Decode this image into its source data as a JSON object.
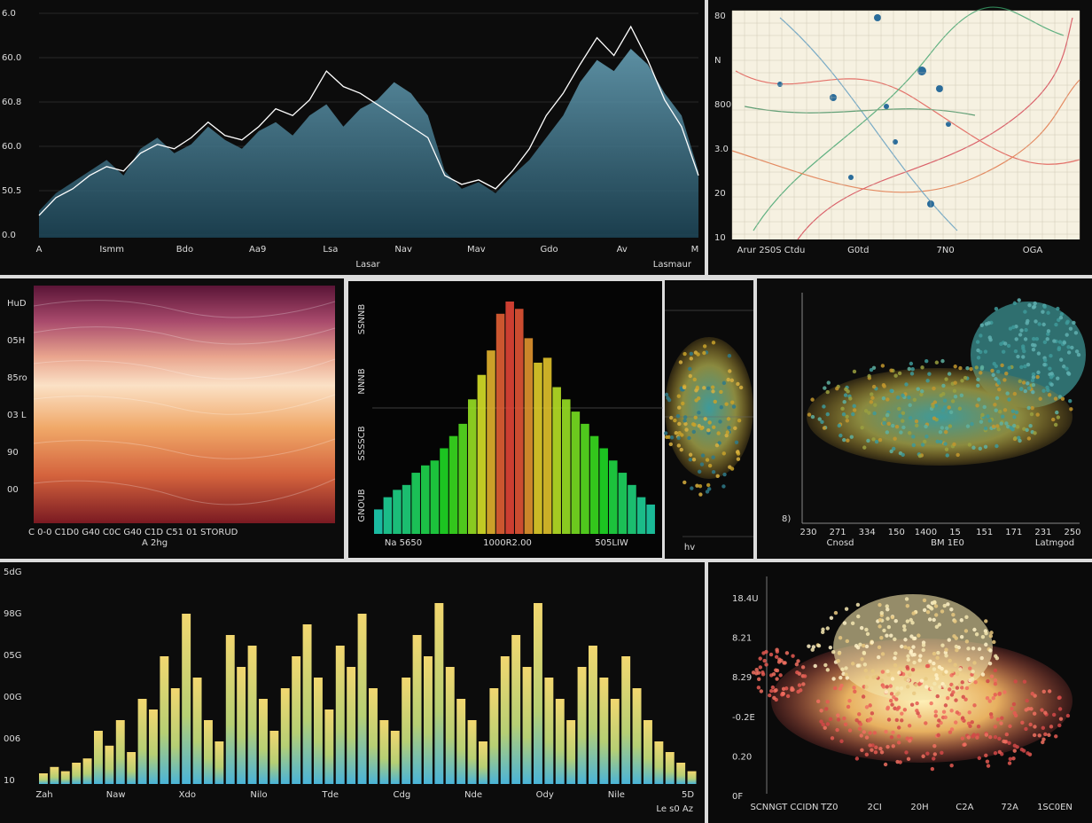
{
  "panels": [
    {
      "type": "line",
      "y_labels": [
        "6.0",
        "60.0",
        "60.8",
        "60.0",
        "50.5",
        "0.0"
      ],
      "x_labels": [
        "A",
        "Ismm",
        "Bdo",
        "Aa9",
        "Lsa",
        "Nav",
        "Mav",
        "Gdo",
        "Av",
        "M"
      ],
      "x_title": "Lasar",
      "x_title_right": "Lasmaur",
      "area": [
        12,
        20,
        25,
        30,
        35,
        28,
        40,
        45,
        38,
        42,
        50,
        44,
        40,
        48,
        52,
        46,
        55,
        60,
        50,
        58,
        62,
        70,
        65,
        55,
        30,
        22,
        25,
        20,
        28,
        35,
        45,
        55,
        70,
        80,
        75,
        85,
        78,
        65,
        55,
        30
      ],
      "line": [
        10,
        18,
        22,
        28,
        32,
        30,
        38,
        42,
        40,
        45,
        52,
        46,
        44,
        50,
        58,
        55,
        62,
        75,
        68,
        65,
        60,
        55,
        50,
        45,
        28,
        24,
        26,
        22,
        30,
        40,
        55,
        65,
        78,
        90,
        82,
        95,
        80,
        62,
        50,
        28
      ]
    },
    {
      "type": "network",
      "y_labels": [
        "80",
        "N",
        "800",
        "3.0",
        "20",
        "10"
      ],
      "x_labels": [
        "Arur 2S0S Ctdu",
        "G0td",
        "7N0",
        "OGA"
      ]
    },
    {
      "type": "stacked",
      "y_labels": [
        "HuD",
        "05H",
        "85ro",
        "03 L",
        "90",
        "00"
      ],
      "x_labels": "C 0-0  C1D0  G40  C0C  G40  C1D  C51  01  STORUD",
      "sub": "A  2hg"
    },
    {
      "type": "histogram",
      "y_labels": [
        "SSNNB",
        "NNNB",
        "SSSSCB",
        "GNOUB"
      ],
      "x_labels": [
        "Na 5650",
        "1000R2.00",
        "505LIW"
      ],
      "values": [
        10,
        15,
        18,
        20,
        25,
        28,
        30,
        35,
        40,
        45,
        55,
        65,
        75,
        90,
        95,
        92,
        80,
        70,
        72,
        60,
        55,
        50,
        45,
        40,
        35,
        30,
        25,
        20,
        15,
        12
      ]
    },
    {
      "type": "scatter",
      "x_labels": [
        "hv"
      ]
    },
    {
      "type": "blob",
      "y_labels": [
        "8)"
      ],
      "x_labels": [
        "230",
        "271",
        "334",
        "150",
        "1400",
        "15",
        "151",
        "171",
        "231",
        "250"
      ],
      "x_titles": [
        "Cnosd",
        "BM 1E0",
        "Latmgod"
      ]
    },
    {
      "type": "bars",
      "y_labels": [
        "5dG",
        "98G",
        "05G",
        "00G",
        "006",
        "10"
      ],
      "x_labels": [
        "Zah",
        "Naw",
        "Xdo",
        "Nilo",
        "Tde",
        "Cdg",
        "Nde",
        "Ody",
        "Nile",
        "5D"
      ],
      "x_title": "Le s0 Az",
      "values": [
        5,
        8,
        6,
        10,
        12,
        25,
        18,
        30,
        15,
        40,
        35,
        60,
        45,
        80,
        50,
        30,
        20,
        70,
        55,
        65,
        40,
        25,
        45,
        60,
        75,
        50,
        35,
        65,
        55,
        80,
        45,
        30,
        25,
        50,
        70,
        60,
        85,
        55,
        40,
        30,
        20,
        45,
        60,
        70,
        55,
        85,
        50,
        40,
        30,
        55,
        65,
        50,
        40,
        60,
        45,
        30,
        20,
        15,
        10,
        6
      ]
    },
    {
      "type": "blob3d",
      "y_labels": [
        "18.4U",
        "8.21",
        "8.29",
        "-0.2E",
        "0.20",
        "0F"
      ],
      "x_labels": [
        "SCNNGT CCIDN",
        "TZ0",
        "2CI",
        "20H",
        "C2A",
        "72A",
        "1SC0EN"
      ]
    }
  ]
}
